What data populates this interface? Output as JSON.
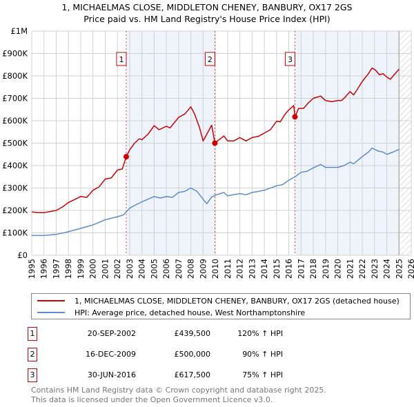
{
  "chart_data": {
    "type": "line",
    "title": "1, MICHAELMAS CLOSE, MIDDLETON CHENEY, BANBURY, OX17 2GS",
    "subtitle": "Price paid vs. HM Land Registry's House Price Index (HPI)",
    "xlim": [
      1995,
      2026
    ],
    "ylim": [
      0,
      1000000
    ],
    "x_ticks": [
      1995,
      1996,
      1997,
      1998,
      1999,
      2000,
      2001,
      2002,
      2003,
      2004,
      2005,
      2006,
      2007,
      2008,
      2009,
      2010,
      2011,
      2012,
      2013,
      2014,
      2015,
      2016,
      2017,
      2018,
      2019,
      2020,
      2021,
      2022,
      2023,
      2024,
      2025,
      2026
    ],
    "y_ticks": [
      {
        "v": 0,
        "label": "£0"
      },
      {
        "v": 100000,
        "label": "£100K"
      },
      {
        "v": 200000,
        "label": "£200K"
      },
      {
        "v": 300000,
        "label": "£300K"
      },
      {
        "v": 400000,
        "label": "£400K"
      },
      {
        "v": 500000,
        "label": "£500K"
      },
      {
        "v": 600000,
        "label": "£600K"
      },
      {
        "v": 700000,
        "label": "£700K"
      },
      {
        "v": 800000,
        "label": "£800K"
      },
      {
        "v": 900000,
        "label": "£900K"
      },
      {
        "v": 1000000,
        "label": "£1M"
      }
    ],
    "grid": true,
    "data_end": 2025.0,
    "series": [
      {
        "name": "1, MICHAELMAS CLOSE, MIDDLETON CHENEY, BANBURY, OX17 2GS (detached house)",
        "color": "#cc0000",
        "x": [
          1995,
          1995.5,
          1996,
          1997,
          1997.5,
          1998,
          1999,
          1999.5,
          2000,
          2000.5,
          2001,
          2001.5,
          2002,
          2002.4,
          2002.72,
          2003,
          2003.4,
          2003.8,
          2004,
          2004.5,
          2005,
          2005.4,
          2006,
          2006.3,
          2007,
          2007.5,
          2008,
          2008.3,
          2008.7,
          2009,
          2009.3,
          2009.7,
          2009.96,
          2010.3,
          2010.7,
          2011,
          2011.5,
          2012,
          2012.5,
          2013,
          2013.5,
          2014,
          2014.5,
          2015,
          2015.3,
          2015.7,
          2016,
          2016.4,
          2016.5,
          2016.8,
          2017.2,
          2017.6,
          2018,
          2018.6,
          2019,
          2019.5,
          2020,
          2020.3,
          2020.6,
          2021,
          2021.3,
          2021.6,
          2022,
          2022.5,
          2022.8,
          2023.1,
          2023.4,
          2023.7,
          2024,
          2024.3,
          2024.6,
          2025
        ],
        "y": [
          193000,
          190000,
          190000,
          200000,
          215000,
          235000,
          262000,
          258000,
          290000,
          305000,
          340000,
          345000,
          380000,
          385000,
          439500,
          470000,
          500000,
          520000,
          515000,
          540000,
          578000,
          560000,
          575000,
          568000,
          615000,
          630000,
          662000,
          630000,
          570000,
          510000,
          540000,
          580000,
          500000,
          515000,
          532000,
          510000,
          510000,
          525000,
          510000,
          525000,
          530000,
          545000,
          560000,
          598000,
          595000,
          630000,
          648000,
          668000,
          617500,
          655000,
          655000,
          680000,
          700000,
          710000,
          690000,
          685000,
          690000,
          690000,
          705000,
          730000,
          715000,
          740000,
          775000,
          810000,
          835000,
          825000,
          805000,
          810000,
          795000,
          785000,
          805000,
          830000
        ]
      },
      {
        "name": "HPI: Average price, detached house, West Northamptonshire",
        "color": "#5b8bd0",
        "x": [
          1995,
          1996,
          1997,
          1998,
          1999,
          2000,
          2001,
          2002,
          2002.5,
          2003,
          2003.5,
          2004,
          2005,
          2005.5,
          2006,
          2006.5,
          2007,
          2007.5,
          2008,
          2008.5,
          2009,
          2009.3,
          2009.7,
          2010,
          2010.7,
          2011,
          2012,
          2012.5,
          2013,
          2014,
          2015,
          2015.5,
          2016,
          2016.5,
          2017,
          2017.5,
          2018,
          2018.6,
          2019,
          2020,
          2020.5,
          2021,
          2021.3,
          2022,
          2022.5,
          2022.8,
          2023.3,
          2023.7,
          2024,
          2024.5,
          2025
        ],
        "y": [
          88000,
          88000,
          93000,
          105000,
          120000,
          135000,
          158000,
          172000,
          180000,
          210000,
          225000,
          238000,
          262000,
          255000,
          262000,
          258000,
          280000,
          285000,
          300000,
          285000,
          250000,
          230000,
          260000,
          268000,
          280000,
          265000,
          275000,
          270000,
          280000,
          290000,
          310000,
          315000,
          335000,
          350000,
          370000,
          375000,
          390000,
          405000,
          392000,
          392000,
          400000,
          415000,
          408000,
          440000,
          460000,
          478000,
          465000,
          460000,
          450000,
          460000,
          472000
        ]
      }
    ],
    "sales": [
      {
        "label": "1",
        "date": "20-SEP-2002",
        "x": 2002.72,
        "price": "£439,500",
        "value": 439500,
        "pct": "120% ↑ HPI"
      },
      {
        "label": "2",
        "date": "16-DEC-2009",
        "x": 2009.96,
        "price": "£500,000",
        "value": 500000,
        "pct": "90% ↑ HPI"
      },
      {
        "label": "3",
        "date": "30-JUN-2016",
        "x": 2016.5,
        "price": "£617,500",
        "value": 617500,
        "pct": "75% ↑ HPI"
      }
    ],
    "shade_color": "#eef3fc"
  },
  "footer": {
    "line1": "Contains HM Land Registry data © Crown copyright and database right 2025.",
    "line2": "This data is licensed under the Open Government Licence v3.0."
  }
}
